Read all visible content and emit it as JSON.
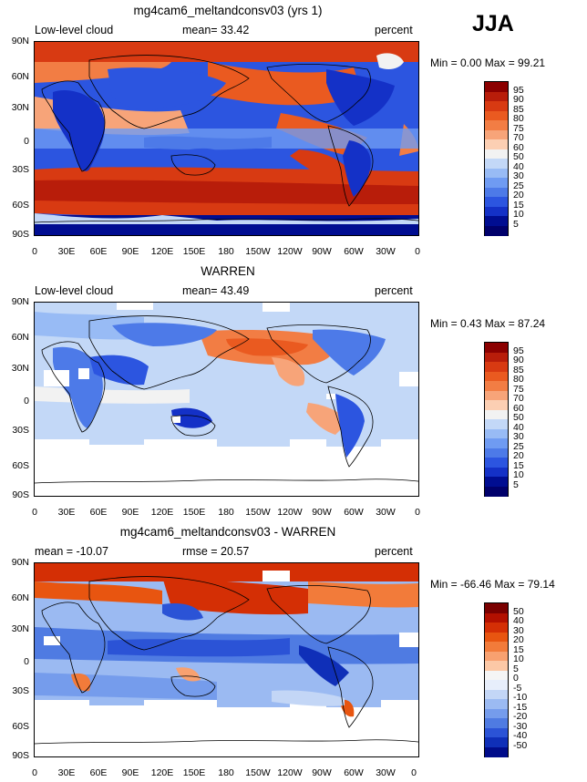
{
  "season": "JJA",
  "lat_ticks": [
    "90N",
    "60N",
    "30N",
    "0",
    "30S",
    "60S",
    "90S"
  ],
  "lon_ticks": [
    "0",
    "30E",
    "60E",
    "90E",
    "120E",
    "150E",
    "180",
    "150W",
    "120W",
    "90W",
    "60W",
    "30W",
    "0"
  ],
  "panels": [
    {
      "title": "mg4cam6_meltandconsv03 (yrs 1)",
      "left_label": "Low-level cloud",
      "center_label": "mean=  33.42",
      "units": "percent",
      "stats": "Min =    0.00 Max =   99.21",
      "colorbar_labels": [
        "95",
        "90",
        "85",
        "80",
        "75",
        "70",
        "60",
        "50",
        "40",
        "30",
        "25",
        "20",
        "15",
        "10",
        "5"
      ]
    },
    {
      "title": "WARREN",
      "left_label": "Low-level cloud",
      "center_label": "mean=  43.49",
      "units": "percent",
      "stats": "Min =    0.43 Max =   87.24",
      "colorbar_labels": [
        "95",
        "90",
        "85",
        "80",
        "75",
        "70",
        "60",
        "50",
        "40",
        "30",
        "25",
        "20",
        "15",
        "10",
        "5"
      ]
    },
    {
      "title": "mg4cam6_meltandconsv03 - WARREN",
      "left_label": "mean = -10.07",
      "center_label": "rmse =  20.57",
      "units": "percent",
      "stats": "Min = -66.46 Max =  79.14",
      "colorbar_labels": [
        "50",
        "40",
        "30",
        "20",
        "15",
        "10",
        "5",
        "0",
        "-5",
        "-10",
        "-15",
        "-20",
        "-30",
        "-40",
        "-50"
      ]
    }
  ],
  "colors": {
    "abs_scale": [
      "#8b0000",
      "#b81d0a",
      "#d83a12",
      "#ea5a20",
      "#f27d44",
      "#f7a479",
      "#fccfb3",
      "#f2f2f2",
      "#c3d8f7",
      "#98bbf5",
      "#6f9bf2",
      "#4d7ae8",
      "#2c55e0",
      "#1431c7",
      "#000d91",
      "#00006b"
    ],
    "diff_scale": [
      "#7a0000",
      "#b31000",
      "#d42f05",
      "#e85510",
      "#f27b3a",
      "#f8a170",
      "#fcc8a6",
      "#f5f5f5",
      "#e7eefb",
      "#c3d6f6",
      "#9bbaf2",
      "#759cec",
      "#4f7be2",
      "#2b53d6",
      "#0f2fb8",
      "#000c8a"
    ]
  }
}
